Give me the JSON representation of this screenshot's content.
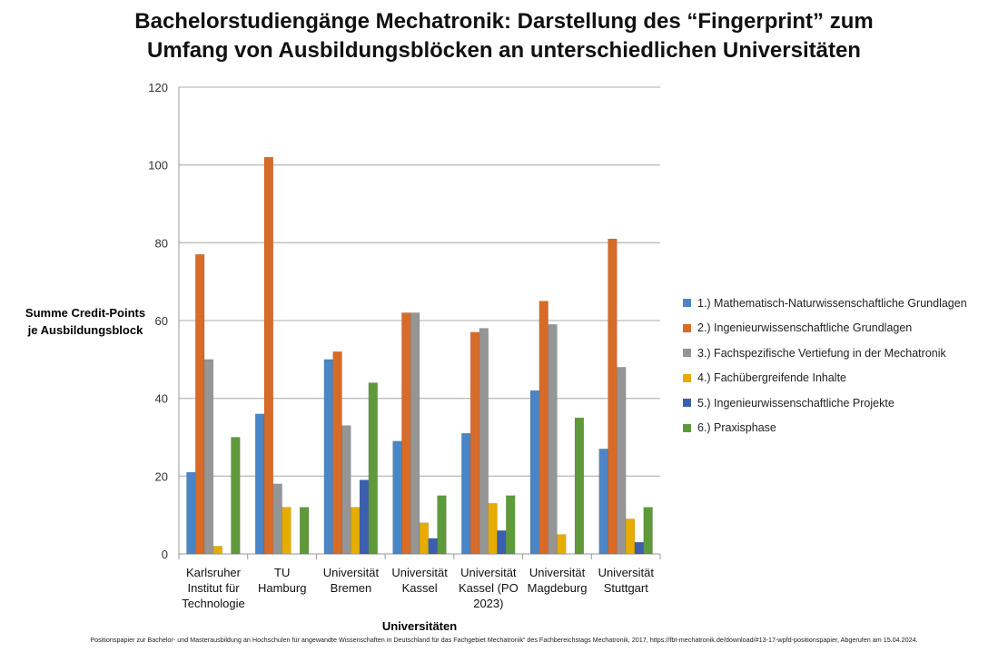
{
  "chart_data": {
    "type": "bar",
    "title": "Bachelorstudiengänge Mechatronik: Darstellung des “Fingerprint” zum Umfang von Ausbildungsblöcken an unterschiedlichen Universitäten",
    "title_lines": [
      "Bachelorstudiengänge Mechatronik: Darstellung des “Fingerprint” zum",
      "Umfang von Ausbildungsblöcken an unterschiedlichen Universitäten"
    ],
    "xlabel": "Universitäten",
    "ylabel_lines": [
      "Summe Credit-Points",
      "je Ausbildungsblock"
    ],
    "ylim": [
      0,
      120
    ],
    "yticks": [
      0,
      20,
      40,
      60,
      80,
      100,
      120
    ],
    "grid": true,
    "legend_position": "right",
    "categories": [
      [
        "Karlsruher",
        "Institut für",
        "Technologie"
      ],
      [
        "TU",
        "Hamburg"
      ],
      [
        "Universität",
        "Bremen"
      ],
      [
        "Universität",
        "Kassel"
      ],
      [
        "Universität",
        "Kassel (PO",
        "2023)"
      ],
      [
        "Universität",
        "Magdeburg"
      ],
      [
        "Universität",
        "Stuttgart"
      ]
    ],
    "series": [
      {
        "name": "1.) Mathematisch-Naturwissenschaftliche Grundlagen",
        "color": "#4a86c5",
        "values": [
          21,
          36,
          50,
          29,
          31,
          42,
          27
        ]
      },
      {
        "name": "2.) Ingenieurwissenschaftliche Grundlagen",
        "color": "#d86b27",
        "values": [
          77,
          102,
          52,
          62,
          57,
          65,
          81
        ]
      },
      {
        "name": "3.) Fachspezifische Vertiefung in der Mechatronik",
        "color": "#959595",
        "values": [
          50,
          18,
          33,
          62,
          58,
          59,
          48
        ]
      },
      {
        "name": "4.) Fachübergreifende Inhalte",
        "color": "#e6ac00",
        "values": [
          2,
          12,
          12,
          8,
          13,
          5,
          9
        ]
      },
      {
        "name": "5.) Ingenieurwissenschaftliche Projekte",
        "color": "#3a5fae",
        "values": [
          0,
          0,
          19,
          4,
          6,
          0,
          3
        ]
      },
      {
        "name": "6.) Praxisphase",
        "color": "#5f9a3a",
        "values": [
          30,
          12,
          44,
          15,
          15,
          35,
          12
        ]
      }
    ]
  },
  "footnote": "Positionspapier zur Bachelor- und Masterausbildung an Hochschulen für angewandte Wissenschaften in Deutschland für das Fachgebiet Mechatronik“ des Fachbereichstags Mechatronik, 2017, https://fbt-mechatronik.de/download/#13-17-wpfd-positionspapier, Abgerufen am 15.04.2024."
}
